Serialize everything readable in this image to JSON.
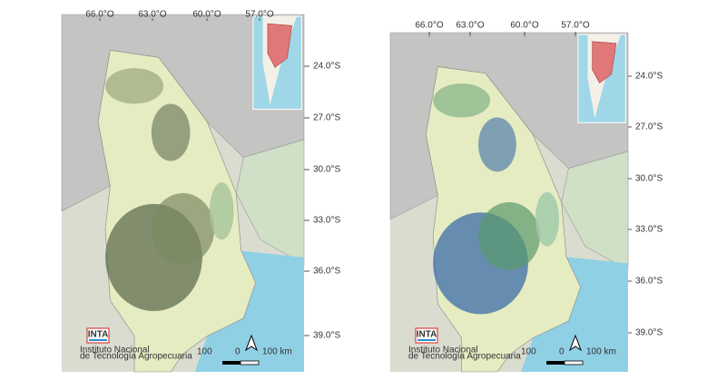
{
  "maps": [
    {
      "longitude_labels": [
        "66.0°O",
        "63.0°O",
        "60.0°O",
        "57.0°O"
      ],
      "latitude_labels": [
        "24.0°S",
        "27.0°S",
        "30.0°S",
        "33.0°S",
        "36.0°S",
        "39.0°S"
      ],
      "scale_labels": [
        "100",
        "0",
        "100 km"
      ],
      "logo": {
        "name": "INTA",
        "caption_lines": [
          "Instituto Nacional",
          "de Tecnología Agropecuaria"
        ]
      }
    },
    {
      "longitude_labels": [
        "66.0°O",
        "63.0°O",
        "60.0°O",
        "57.0°O"
      ],
      "latitude_labels": [
        "24.0°S",
        "27.0°S",
        "30.0°S",
        "33.0°S",
        "36.0°S",
        "39.0°S"
      ],
      "scale_labels": [
        "100",
        "0",
        "100 km"
      ],
      "logo": {
        "name": "INTA",
        "caption_lines": [
          "Instituto Nacional",
          "de Tecnología Agropecuaria"
        ]
      }
    }
  ]
}
